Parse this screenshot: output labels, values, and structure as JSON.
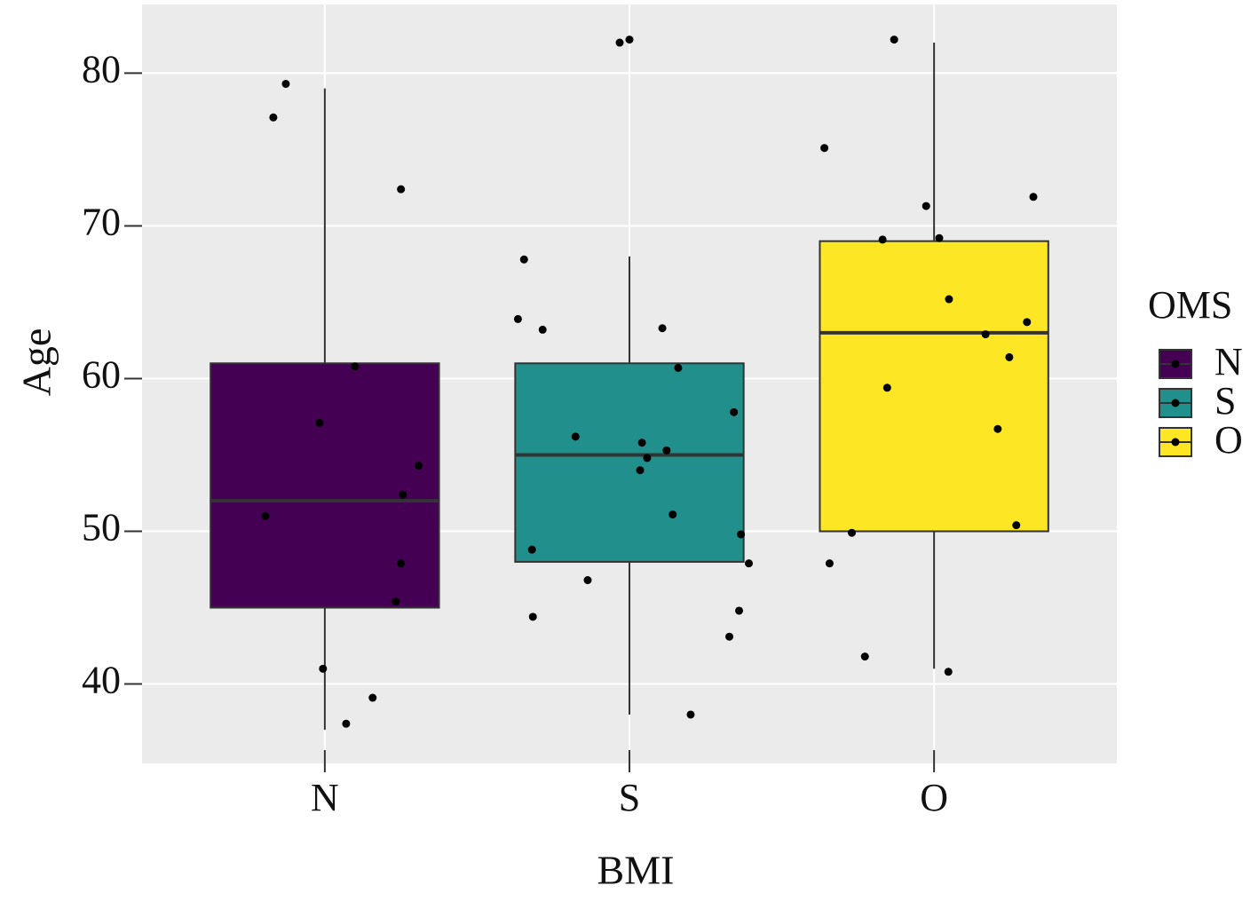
{
  "chart_data": {
    "type": "box",
    "x_label": "BMI",
    "y_label": "Age",
    "categories": [
      "N",
      "S",
      "O"
    ],
    "legend_title": "OMS",
    "series": [
      {
        "name": "N",
        "color": "#440154",
        "whisker_low": 37,
        "q1": 45,
        "median": 52,
        "q3": 61,
        "whisker_high": 79
      },
      {
        "name": "S",
        "color": "#21908c",
        "whisker_low": 38,
        "q1": 48,
        "median": 55,
        "q3": 61,
        "whisker_high": 68
      },
      {
        "name": "O",
        "color": "#fde725",
        "whisker_low": 41,
        "q1": 50,
        "median": 63,
        "q3": 69,
        "whisker_high": 82
      }
    ],
    "points": {
      "color": "#000000",
      "x": [
        0.872,
        0.831,
        1.25,
        1.099,
        0.983,
        1.308,
        1.256,
        0.805,
        1.25,
        1.233,
        0.994,
        1.157,
        1.07,
        1.968,
        2.0,
        1.654,
        1.634,
        1.715,
        2.108,
        2.16,
        2.343,
        1.823,
        2.041,
        2.122,
        2.058,
        2.035,
        2.142,
        2.366,
        1.68,
        2.392,
        1.863,
        2.36,
        1.683,
        2.328,
        2.201,
        2.869,
        2.64,
        3.326,
        2.974,
        2.831,
        3.017,
        3.049,
        3.305,
        3.169,
        3.247,
        2.846,
        3.209,
        3.27,
        2.73,
        2.657,
        2.773,
        3.047
      ],
      "y": [
        79.3,
        77.1,
        72.4,
        60.8,
        57.1,
        54.3,
        52.4,
        51.0,
        47.9,
        45.4,
        41.0,
        39.1,
        37.4,
        82.0,
        82.2,
        67.8,
        63.9,
        63.2,
        63.3,
        60.7,
        57.8,
        56.2,
        55.8,
        55.3,
        54.8,
        54.0,
        51.1,
        49.8,
        48.8,
        47.9,
        46.8,
        44.8,
        44.4,
        43.1,
        38.0,
        82.2,
        75.1,
        71.9,
        71.3,
        69.1,
        69.2,
        65.2,
        63.7,
        62.9,
        61.4,
        59.4,
        56.7,
        50.4,
        49.9,
        47.9,
        41.8,
        40.8
      ]
    },
    "xlim": [
      0.4,
      3.6
    ],
    "ylim": [
      34.8,
      84.5
    ],
    "yticks": [
      40,
      50,
      60,
      70,
      80
    ],
    "grid": true
  }
}
